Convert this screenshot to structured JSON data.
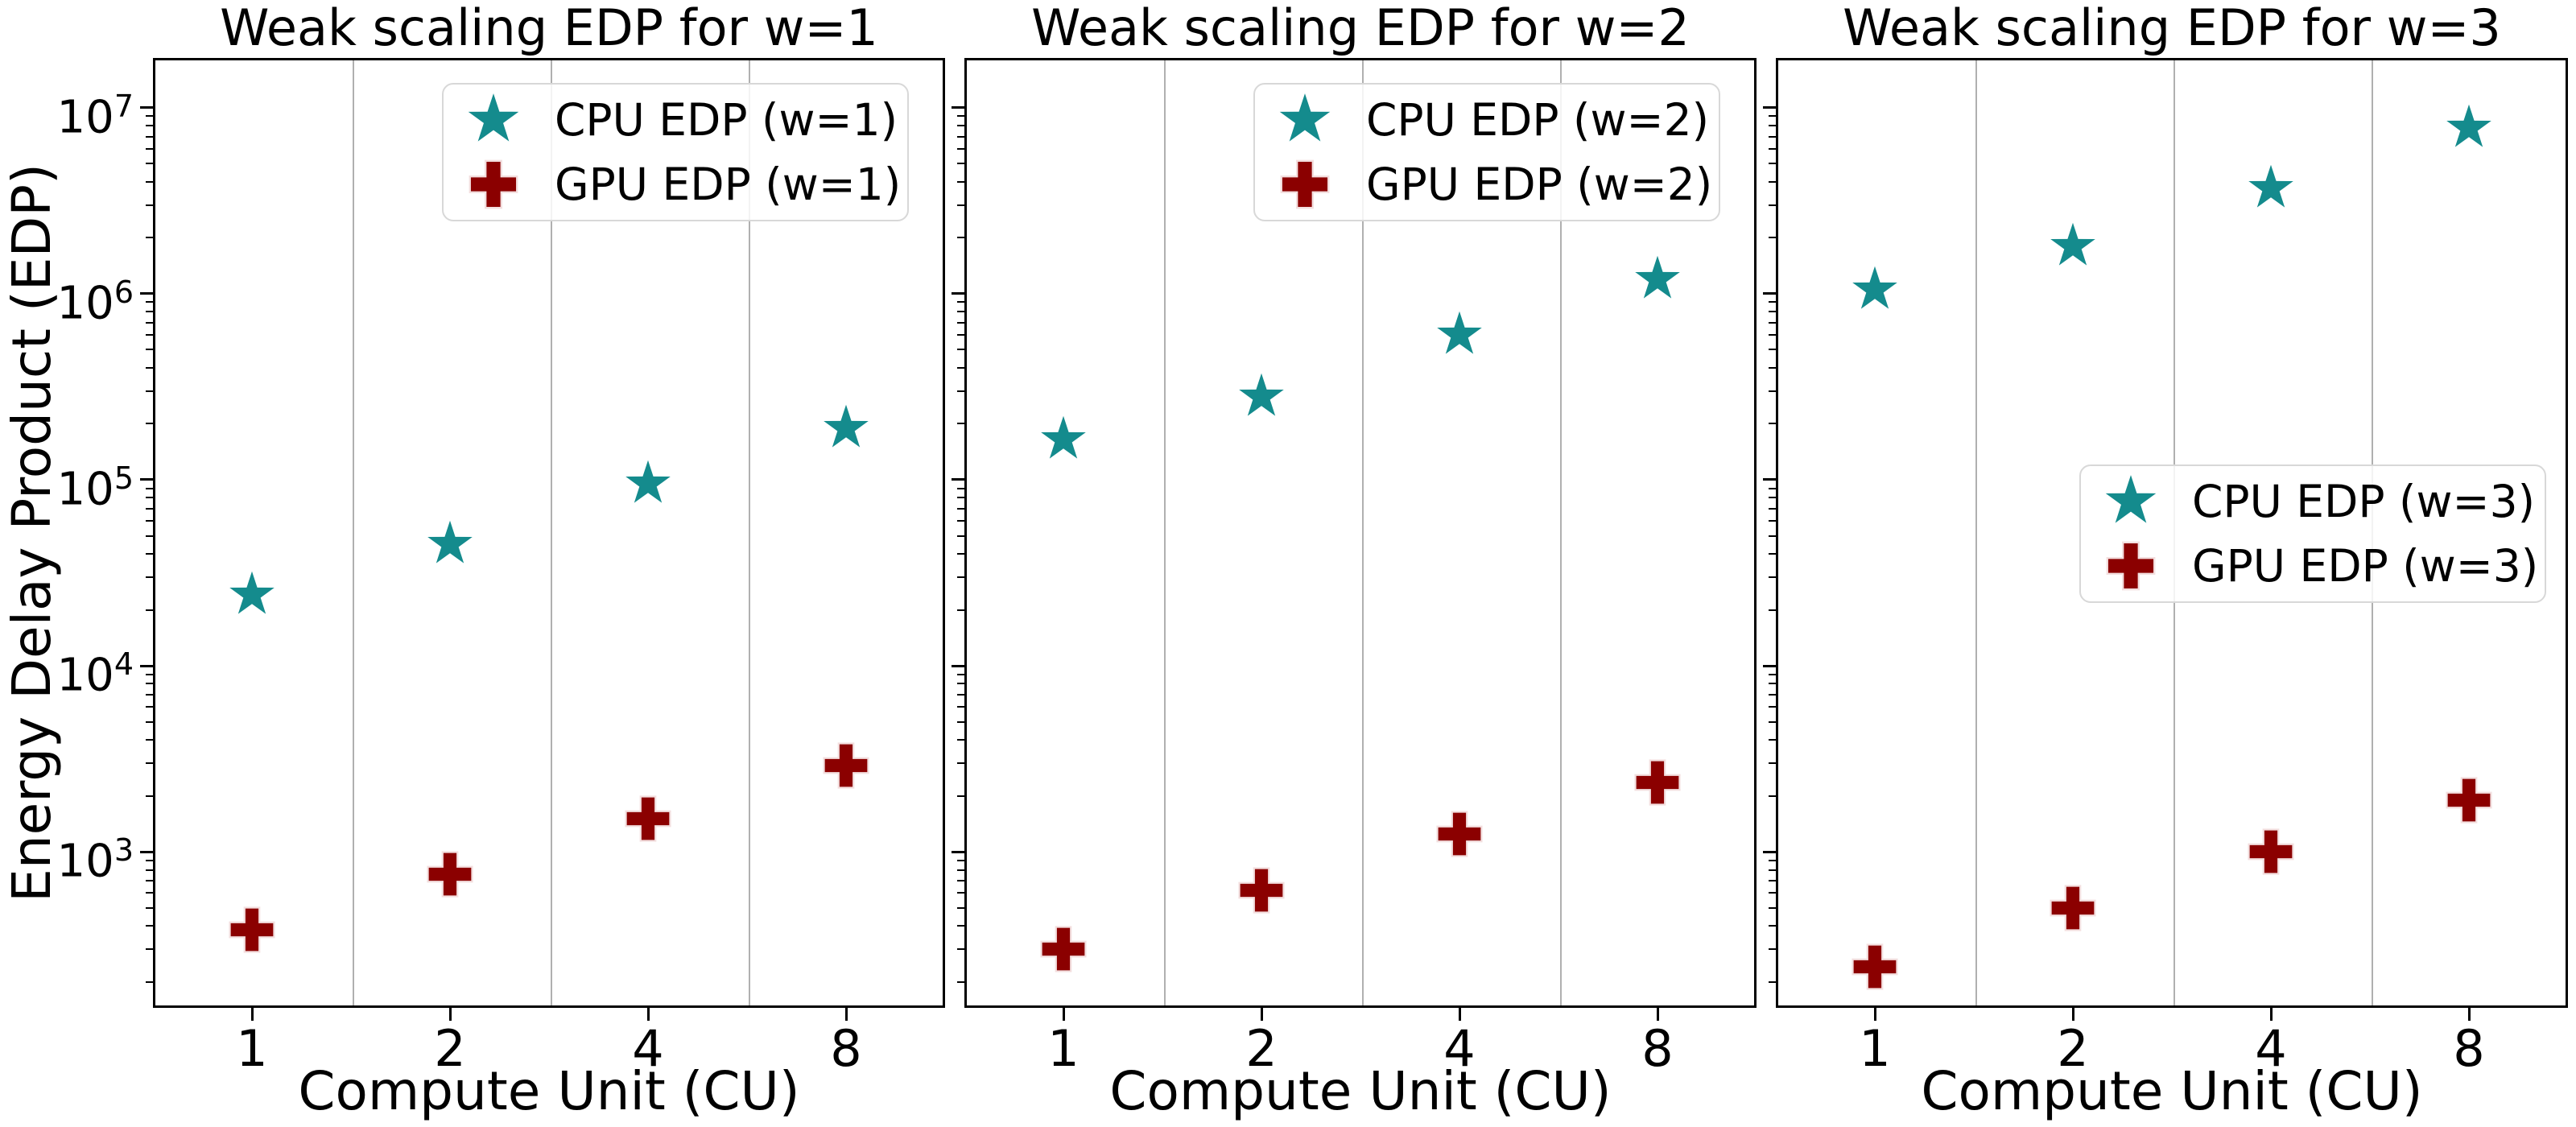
{
  "ylabel": "Energy Delay Product (EDP)",
  "colors": {
    "cpu_marker": "#148b8d",
    "gpu_marker": "#8b0000",
    "gpu_marker_edge": "#f3dfdf",
    "grid": "#b0b0b0",
    "axis": "#000000",
    "legend_border": "#d8d8d8"
  },
  "y_axis": {
    "base": "10",
    "tick_exponents": [
      3,
      4,
      5,
      6,
      7
    ]
  },
  "x_axis": {
    "tick_labels": [
      "1",
      "2",
      "4",
      "8"
    ]
  },
  "chart_data": [
    {
      "type": "scatter",
      "title": "Weak scaling EDP for w=1",
      "xlabel": "Compute Unit (CU)",
      "x": [
        1,
        2,
        4,
        8
      ],
      "ylog": true,
      "ylim": [
        145,
        18500000
      ],
      "grid": "vertical-between-categories",
      "legend_position": "upper-right",
      "series": [
        {
          "name": "CPU EDP (w=1)",
          "marker": "star",
          "values": [
            24000,
            45000,
            95000,
            190000
          ]
        },
        {
          "name": "GPU EDP (w=1)",
          "marker": "plus",
          "values": [
            380,
            760,
            1500,
            2900
          ]
        }
      ]
    },
    {
      "type": "scatter",
      "title": "Weak scaling EDP for w=2",
      "xlabel": "Compute Unit (CU)",
      "x": [
        1,
        2,
        4,
        8
      ],
      "ylog": true,
      "ylim": [
        145,
        18500000
      ],
      "grid": "vertical-between-categories",
      "legend_position": "upper-right",
      "series": [
        {
          "name": "CPU EDP (w=2)",
          "marker": "star",
          "values": [
            165000,
            280000,
            600000,
            1200000
          ]
        },
        {
          "name": "GPU EDP (w=2)",
          "marker": "plus",
          "values": [
            300,
            620,
            1250,
            2350
          ]
        }
      ]
    },
    {
      "type": "scatter",
      "title": "Weak scaling EDP for w=3",
      "xlabel": "Compute Unit (CU)",
      "x": [
        1,
        2,
        4,
        8
      ],
      "ylog": true,
      "ylim": [
        145,
        18500000
      ],
      "grid": "vertical-between-categories",
      "legend_position": "center-right",
      "series": [
        {
          "name": "CPU EDP (w=3)",
          "marker": "star",
          "values": [
            1050000,
            1800000,
            3700000,
            7800000
          ]
        },
        {
          "name": "GPU EDP (w=3)",
          "marker": "plus",
          "values": [
            240,
            500,
            1000,
            1900
          ]
        }
      ]
    }
  ]
}
